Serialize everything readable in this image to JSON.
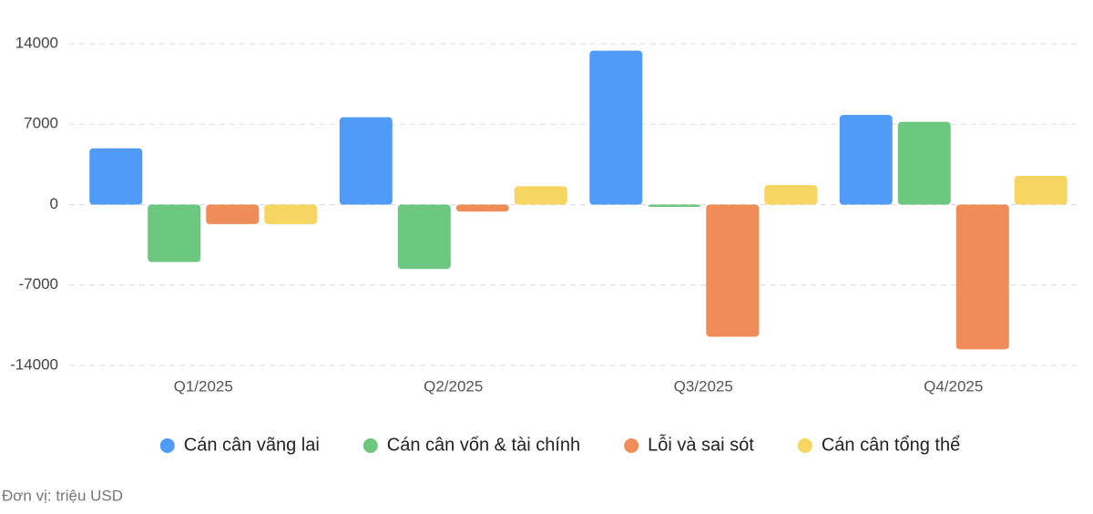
{
  "chart_data": {
    "type": "bar",
    "categories": [
      "Q1/2025",
      "Q2/2025",
      "Q3/2025",
      "Q4/2025"
    ],
    "series": [
      {
        "name": "Cán cân vãng lai",
        "color": "#4f9bf7",
        "values": [
          4900,
          7600,
          13400,
          7800
        ]
      },
      {
        "name": "Cán cân vốn & tài chính",
        "color": "#6cc77f",
        "values": [
          -5000,
          -5600,
          -200,
          7200
        ]
      },
      {
        "name": "Lỗi và sai sót",
        "color": "#ef8c57",
        "values": [
          -1700,
          -600,
          -11500,
          -12600
        ]
      },
      {
        "name": "Cán cân tổng thể",
        "color": "#f7d561",
        "values": [
          -1700,
          1600,
          1700,
          2500
        ]
      }
    ],
    "ylim": [
      -14000,
      14000
    ],
    "yticks": [
      -14000,
      -7000,
      0,
      7000,
      14000
    ],
    "grid": true,
    "note": "Đơn vị: triệu USD"
  }
}
